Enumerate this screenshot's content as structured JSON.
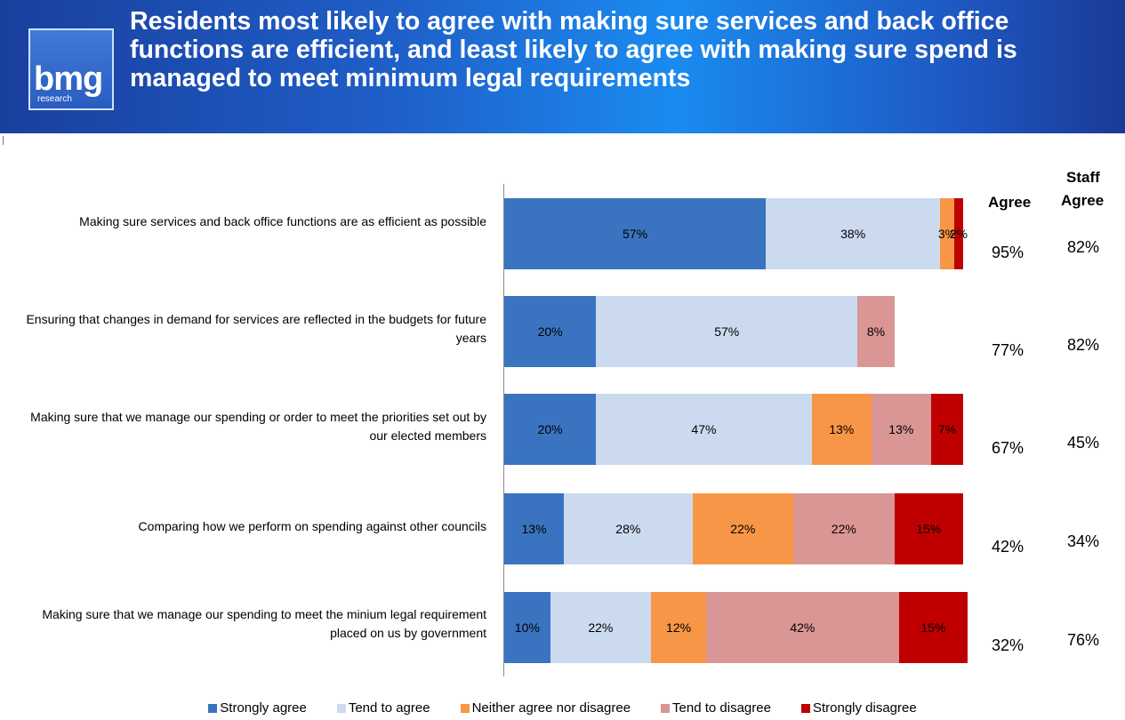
{
  "header": {
    "title": "Residents most likely to agree with making sure services and back office functions are efficient, and least likely to agree with making sure spend is managed to meet minimum legal requirements",
    "logo_main": "bmg",
    "logo_sub": "research"
  },
  "columns": {
    "agree_header": "Agree",
    "staff_header_line1": "Staff",
    "staff_header_line2": "Agree"
  },
  "colors": {
    "strongly_agree": "#3a74c0",
    "tend_to_agree": "#ccdaf0",
    "neither": "#f79646",
    "tend_to_disagree": "#d99694",
    "strongly_disagree": "#c00000"
  },
  "legend": [
    {
      "label": "Strongly agree",
      "color": "#3a74c0"
    },
    {
      "label": "Tend to agree",
      "color": "#ccdaf0"
    },
    {
      "label": "Neither agree nor disagree",
      "color": "#f79646"
    },
    {
      "label": "Tend to disagree",
      "color": "#d99694"
    },
    {
      "label": "Strongly disagree",
      "color": "#c00000"
    }
  ],
  "chart_data": {
    "type": "bar",
    "orientation": "horizontal",
    "stacked": true,
    "title": "Residents most likely to agree with making sure services and back office functions are efficient, and least likely to agree with making sure spend is managed to meet minimum legal requirements",
    "categories": [
      "Making sure services and back office functions are as efficient as possible",
      "Ensuring that changes in demand for services are reflected in the budgets for future years",
      "Making sure that we manage our spending or order to meet the priorities set out by our elected members",
      "Comparing how we perform on spending against other councils",
      "Making sure that we manage our spending to meet the minium legal requirement placed on us by government"
    ],
    "series": [
      {
        "name": "Strongly agree",
        "values": [
          57,
          20,
          20,
          13,
          10
        ]
      },
      {
        "name": "Tend to agree",
        "values": [
          38,
          57,
          47,
          28,
          22
        ]
      },
      {
        "name": "Neither agree nor disagree",
        "values": [
          3,
          0,
          13,
          22,
          12
        ]
      },
      {
        "name": "Tend to disagree",
        "values": [
          0,
          8,
          13,
          22,
          42
        ]
      },
      {
        "name": "Strongly disagree",
        "values": [
          2,
          0,
          7,
          15,
          15
        ]
      }
    ],
    "agree": [
      "95%",
      "77%",
      "67%",
      "42%",
      "32%"
    ],
    "staff_agree": [
      "82%",
      "82%",
      "45%",
      "34%",
      "76%"
    ],
    "xlim": [
      0,
      100
    ],
    "legend_position": "bottom",
    "grid": false
  }
}
